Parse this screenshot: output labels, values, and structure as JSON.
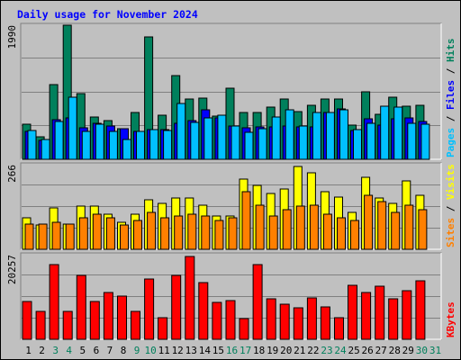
{
  "chart_data": {
    "type": "bar",
    "title": "Daily usage for November 2024",
    "categories": [
      "1",
      "2",
      "3",
      "4",
      "5",
      "6",
      "7",
      "8",
      "9",
      "10",
      "11",
      "12",
      "13",
      "14",
      "15",
      "16",
      "17",
      "18",
      "19",
      "20",
      "21",
      "22",
      "23",
      "24",
      "25",
      "26",
      "27",
      "28",
      "29",
      "30",
      "31"
    ],
    "category_colors": [
      "#000000",
      "#000000",
      "#00805C",
      "#00805C",
      "#000000",
      "#000000",
      "#000000",
      "#000000",
      "#00805C",
      "#00805C",
      "#000000",
      "#000000",
      "#000000",
      "#000000",
      "#000000",
      "#00805C",
      "#00805C",
      "#000000",
      "#000000",
      "#000000",
      "#000000",
      "#000000",
      "#00805C",
      "#00805C",
      "#000000",
      "#000000",
      "#000000",
      "#000000",
      "#000000",
      "#00805C",
      "#00805C"
    ],
    "panels": [
      {
        "name": "hits-files-pages",
        "ymax": 1990,
        "ymax_label": "1990",
        "side_label": [
          {
            "text": "Pages",
            "color": "#00C0FF"
          },
          {
            "text": " / ",
            "color": "#000000"
          },
          {
            "text": "Files",
            "color": "#0000FF"
          },
          {
            "text": " / ",
            "color": "#000000"
          },
          {
            "text": "Hits",
            "color": "#00805C"
          }
        ],
        "series": [
          {
            "name": "Hits",
            "color": "#00805C",
            "values": [
              520,
              330,
              1110,
              1990,
              970,
              630,
              570,
              450,
              700,
              1820,
              660,
              1240,
              900,
              910,
              640,
              1060,
              690,
              700,
              780,
              900,
              710,
              800,
              900,
              900,
              510,
              1000,
              670,
              920,
              790,
              800,
              null
            ]
          },
          {
            "name": "Files",
            "color": "#0000FF",
            "values": [
              420,
              280,
              590,
              620,
              470,
              530,
              490,
              450,
              420,
              440,
              440,
              530,
              570,
              730,
              610,
              500,
              470,
              480,
              480,
              500,
              480,
              480,
              700,
              750,
              430,
              600,
              510,
              600,
              620,
              560,
              null
            ]
          },
          {
            "name": "Pages",
            "color": "#00C0FF",
            "values": [
              430,
              300,
              560,
              920,
              410,
              520,
              420,
              300,
              420,
              440,
              430,
              830,
              550,
              620,
              650,
              500,
              400,
              450,
              630,
              730,
              490,
              700,
              690,
              740,
              440,
              530,
              790,
              770,
              530,
              520,
              null
            ]
          }
        ]
      },
      {
        "name": "visits-sites",
        "ymax": 266,
        "ymax_label": "266",
        "side_label": [
          {
            "text": "Sites",
            "color": "#FF8000"
          },
          {
            "text": " / ",
            "color": "#000000"
          },
          {
            "text": "Visits",
            "color": "#FFFF00"
          }
        ],
        "series": [
          {
            "name": "Visits",
            "color": "#FFFF00",
            "values": [
              100,
              75,
              130,
              80,
              135,
              135,
              110,
              85,
              110,
              155,
              145,
              160,
              160,
              140,
              105,
              105,
              220,
              200,
              175,
              190,
              260,
              240,
              180,
              165,
              115,
              225,
              160,
              145,
              215,
              170,
              null
            ]
          },
          {
            "name": "Sites",
            "color": "#FF8000",
            "values": [
              80,
              80,
              85,
              80,
              100,
              110,
              100,
              75,
              90,
              115,
              100,
              105,
              110,
              105,
              90,
              100,
              180,
              140,
              105,
              125,
              135,
              140,
              110,
              100,
              90,
              170,
              150,
              115,
              140,
              125,
              null
            ]
          }
        ]
      },
      {
        "name": "kbytes",
        "ymax": 20257,
        "ymax_label": "20257",
        "side_label": [
          {
            "text": "KBytes",
            "color": "#FF0000"
          }
        ],
        "series": [
          {
            "name": "KBytes",
            "color": "#FF0000",
            "values": [
              9000,
              6700,
              17900,
              6700,
              15200,
              9000,
              11100,
              10400,
              6700,
              14500,
              5200,
              15300,
              19800,
              13500,
              8800,
              9300,
              4900,
              17900,
              9700,
              8300,
              7500,
              10000,
              7800,
              5200,
              13000,
              11200,
              12800,
              9700,
              11600,
              14100,
              null
            ]
          }
        ]
      }
    ]
  }
}
